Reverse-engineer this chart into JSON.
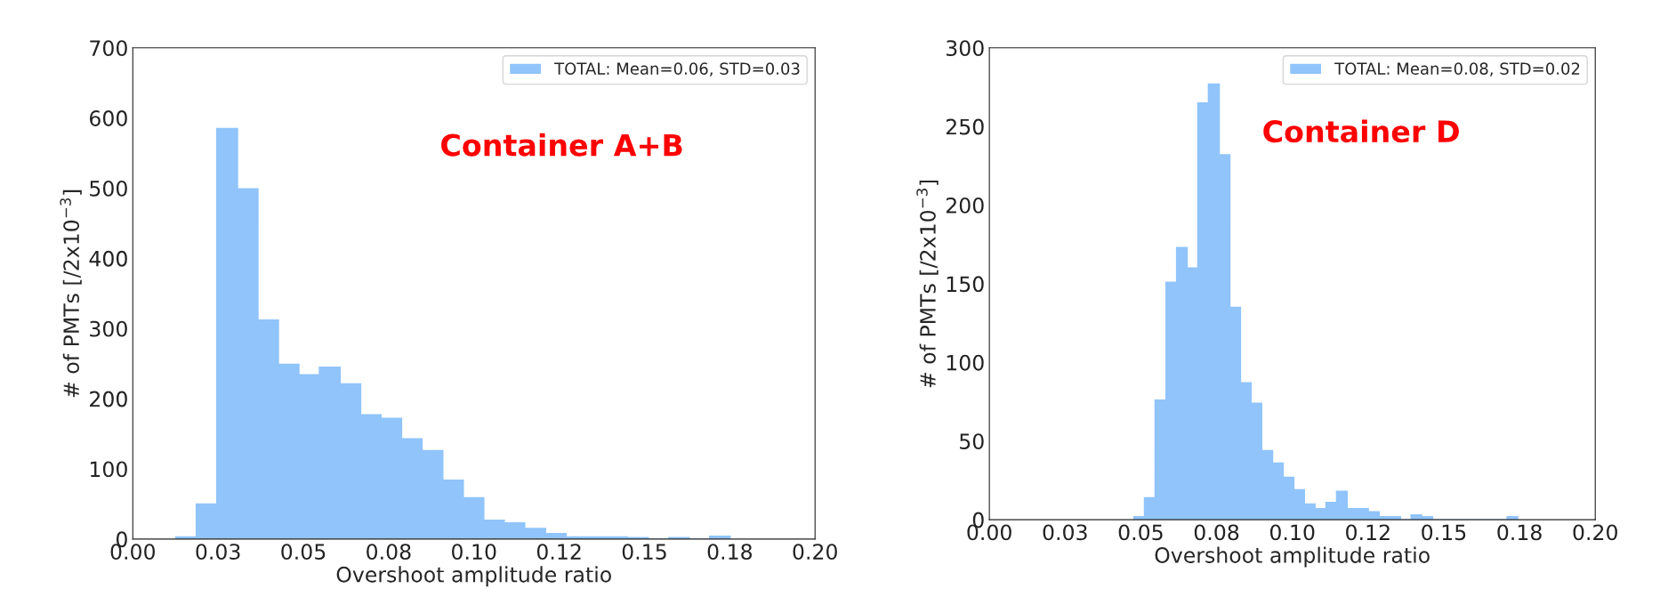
{
  "chart_data": [
    {
      "type": "histogram",
      "xlabel": "Overshoot amplitude ratio",
      "ylabel": "# of PMTs [/2x10$^{−3}$]",
      "bins": [
        0.0126,
        0.0186,
        0.0246,
        0.0307,
        0.0367,
        0.0427,
        0.0487,
        0.0547,
        0.0608,
        0.0668,
        0.0728,
        0.0788,
        0.0848,
        0.0909,
        0.0969,
        0.1029,
        0.1089,
        0.1149,
        0.121,
        0.127,
        0.133,
        0.139,
        0.145,
        0.1511,
        0.1571,
        0.1631,
        0.1691,
        0.1751
      ],
      "series": [
        {
          "name": "TOTAL: Mean=0.06, STD=0.03",
          "color": "#90c4fa",
          "values": [
            3,
            50,
            585,
            499,
            312,
            249,
            234,
            245,
            221,
            177,
            172,
            143,
            126,
            84,
            59,
            27,
            23,
            15,
            8,
            3,
            3,
            3,
            2,
            0,
            2,
            0,
            4
          ]
        }
      ],
      "annotations": [
        "Container A+B"
      ],
      "xlim": [
        0,
        0.2
      ],
      "xticks": [
        {
          "value": 0,
          "label": "0.00"
        },
        {
          "value": 0.025,
          "label": "0.03"
        },
        {
          "value": 0.05,
          "label": "0.05"
        },
        {
          "value": 0.075,
          "label": "0.08"
        },
        {
          "value": 0.1,
          "label": "0.10"
        },
        {
          "value": 0.125,
          "label": "0.12"
        },
        {
          "value": 0.15,
          "label": "0.15"
        },
        {
          "value": 0.175,
          "label": "0.18"
        },
        {
          "value": 0.2,
          "label": "0.20"
        }
      ],
      "ylim": [
        0,
        700
      ],
      "yticks": [
        0,
        100,
        200,
        300,
        400,
        500,
        600,
        700
      ],
      "legend": "top right",
      "grid": false
    },
    {
      "type": "histogram",
      "xlabel": "Overshoot amplitude ratio",
      "ylabel": "# of PMTs [/2x10$^{−3}$]",
      "bins": [
        0.0477,
        0.0512,
        0.0547,
        0.0583,
        0.0618,
        0.0653,
        0.0688,
        0.0723,
        0.0759,
        0.0794,
        0.0829,
        0.0864,
        0.0899,
        0.0935,
        0.097,
        0.1005,
        0.104,
        0.1075,
        0.1111,
        0.1146,
        0.1181,
        0.1216,
        0.1251,
        0.1287,
        0.1322,
        0.1357,
        0.1392,
        0.1427,
        0.1463,
        0.1498,
        0.1533,
        0.1568,
        0.1603,
        0.1639,
        0.1674,
        0.1709,
        0.1744
      ],
      "series": [
        {
          "name": "TOTAL: Mean=0.08, STD=0.02",
          "color": "#90c4fa",
          "values": [
            2,
            14,
            76,
            151,
            173,
            160,
            265,
            277,
            232,
            135,
            87,
            74,
            44,
            36,
            27,
            19,
            10,
            7,
            11,
            18,
            7,
            7,
            5,
            2,
            2,
            0,
            3,
            2,
            0,
            0,
            0,
            0,
            0,
            0,
            0,
            2
          ]
        }
      ],
      "annotations": [
        "Container D"
      ],
      "xlim": [
        0,
        0.2
      ],
      "xticks": [
        {
          "value": 0,
          "label": "0.00"
        },
        {
          "value": 0.025,
          "label": "0.03"
        },
        {
          "value": 0.05,
          "label": "0.05"
        },
        {
          "value": 0.075,
          "label": "0.08"
        },
        {
          "value": 0.1,
          "label": "0.10"
        },
        {
          "value": 0.125,
          "label": "0.12"
        },
        {
          "value": 0.15,
          "label": "0.15"
        },
        {
          "value": 0.175,
          "label": "0.18"
        },
        {
          "value": 0.2,
          "label": "0.20"
        }
      ],
      "ylim": [
        0,
        300
      ],
      "yticks": [
        0,
        50,
        100,
        150,
        200,
        250,
        300
      ],
      "legend": "top right",
      "grid": false
    }
  ]
}
